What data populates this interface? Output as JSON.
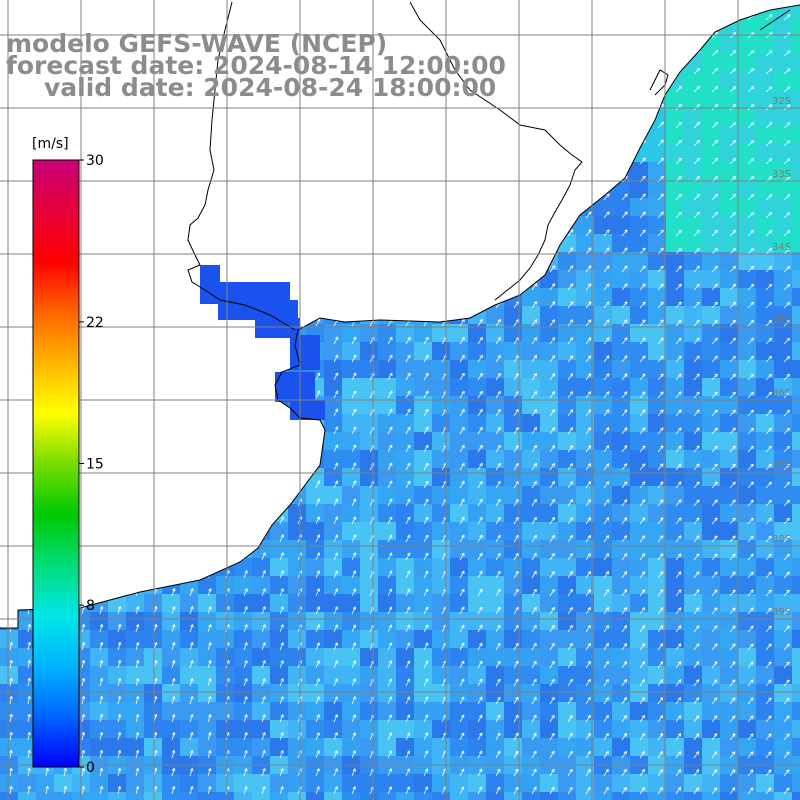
{
  "title": {
    "line1": "modelo GEFS-WAVE (NCEP)",
    "line2": "forecast date: 2024-08-14 12:00:00",
    "line3": "valid date: 2024-08-24 18:00:00"
  },
  "variable": "wind speed",
  "colorbar": {
    "unit": "[m/s]",
    "min": 0,
    "max": 30,
    "tick_labels": [
      "30",
      "22",
      "15",
      "8",
      "0"
    ],
    "tick_values": [
      30,
      22,
      15,
      8,
      0
    ],
    "colors": [
      "#0000ff",
      "#0064ff",
      "#00b4ff",
      "#00e6e6",
      "#00dc78",
      "#00c800",
      "#78dc00",
      "#ffff00",
      "#ffb400",
      "#ff6400",
      "#ff0000",
      "#e6003c",
      "#c80078"
    ]
  },
  "lat_labels": [
    "32S",
    "33S",
    "34S",
    "35S",
    "36S",
    "37S",
    "38S",
    "39S"
  ],
  "colors": {
    "land": "#ffffff",
    "coast": "#000000",
    "grid": "#808080",
    "arrow": "#ffffff",
    "title": "#8c8c8c"
  },
  "legend_placement": "left"
}
